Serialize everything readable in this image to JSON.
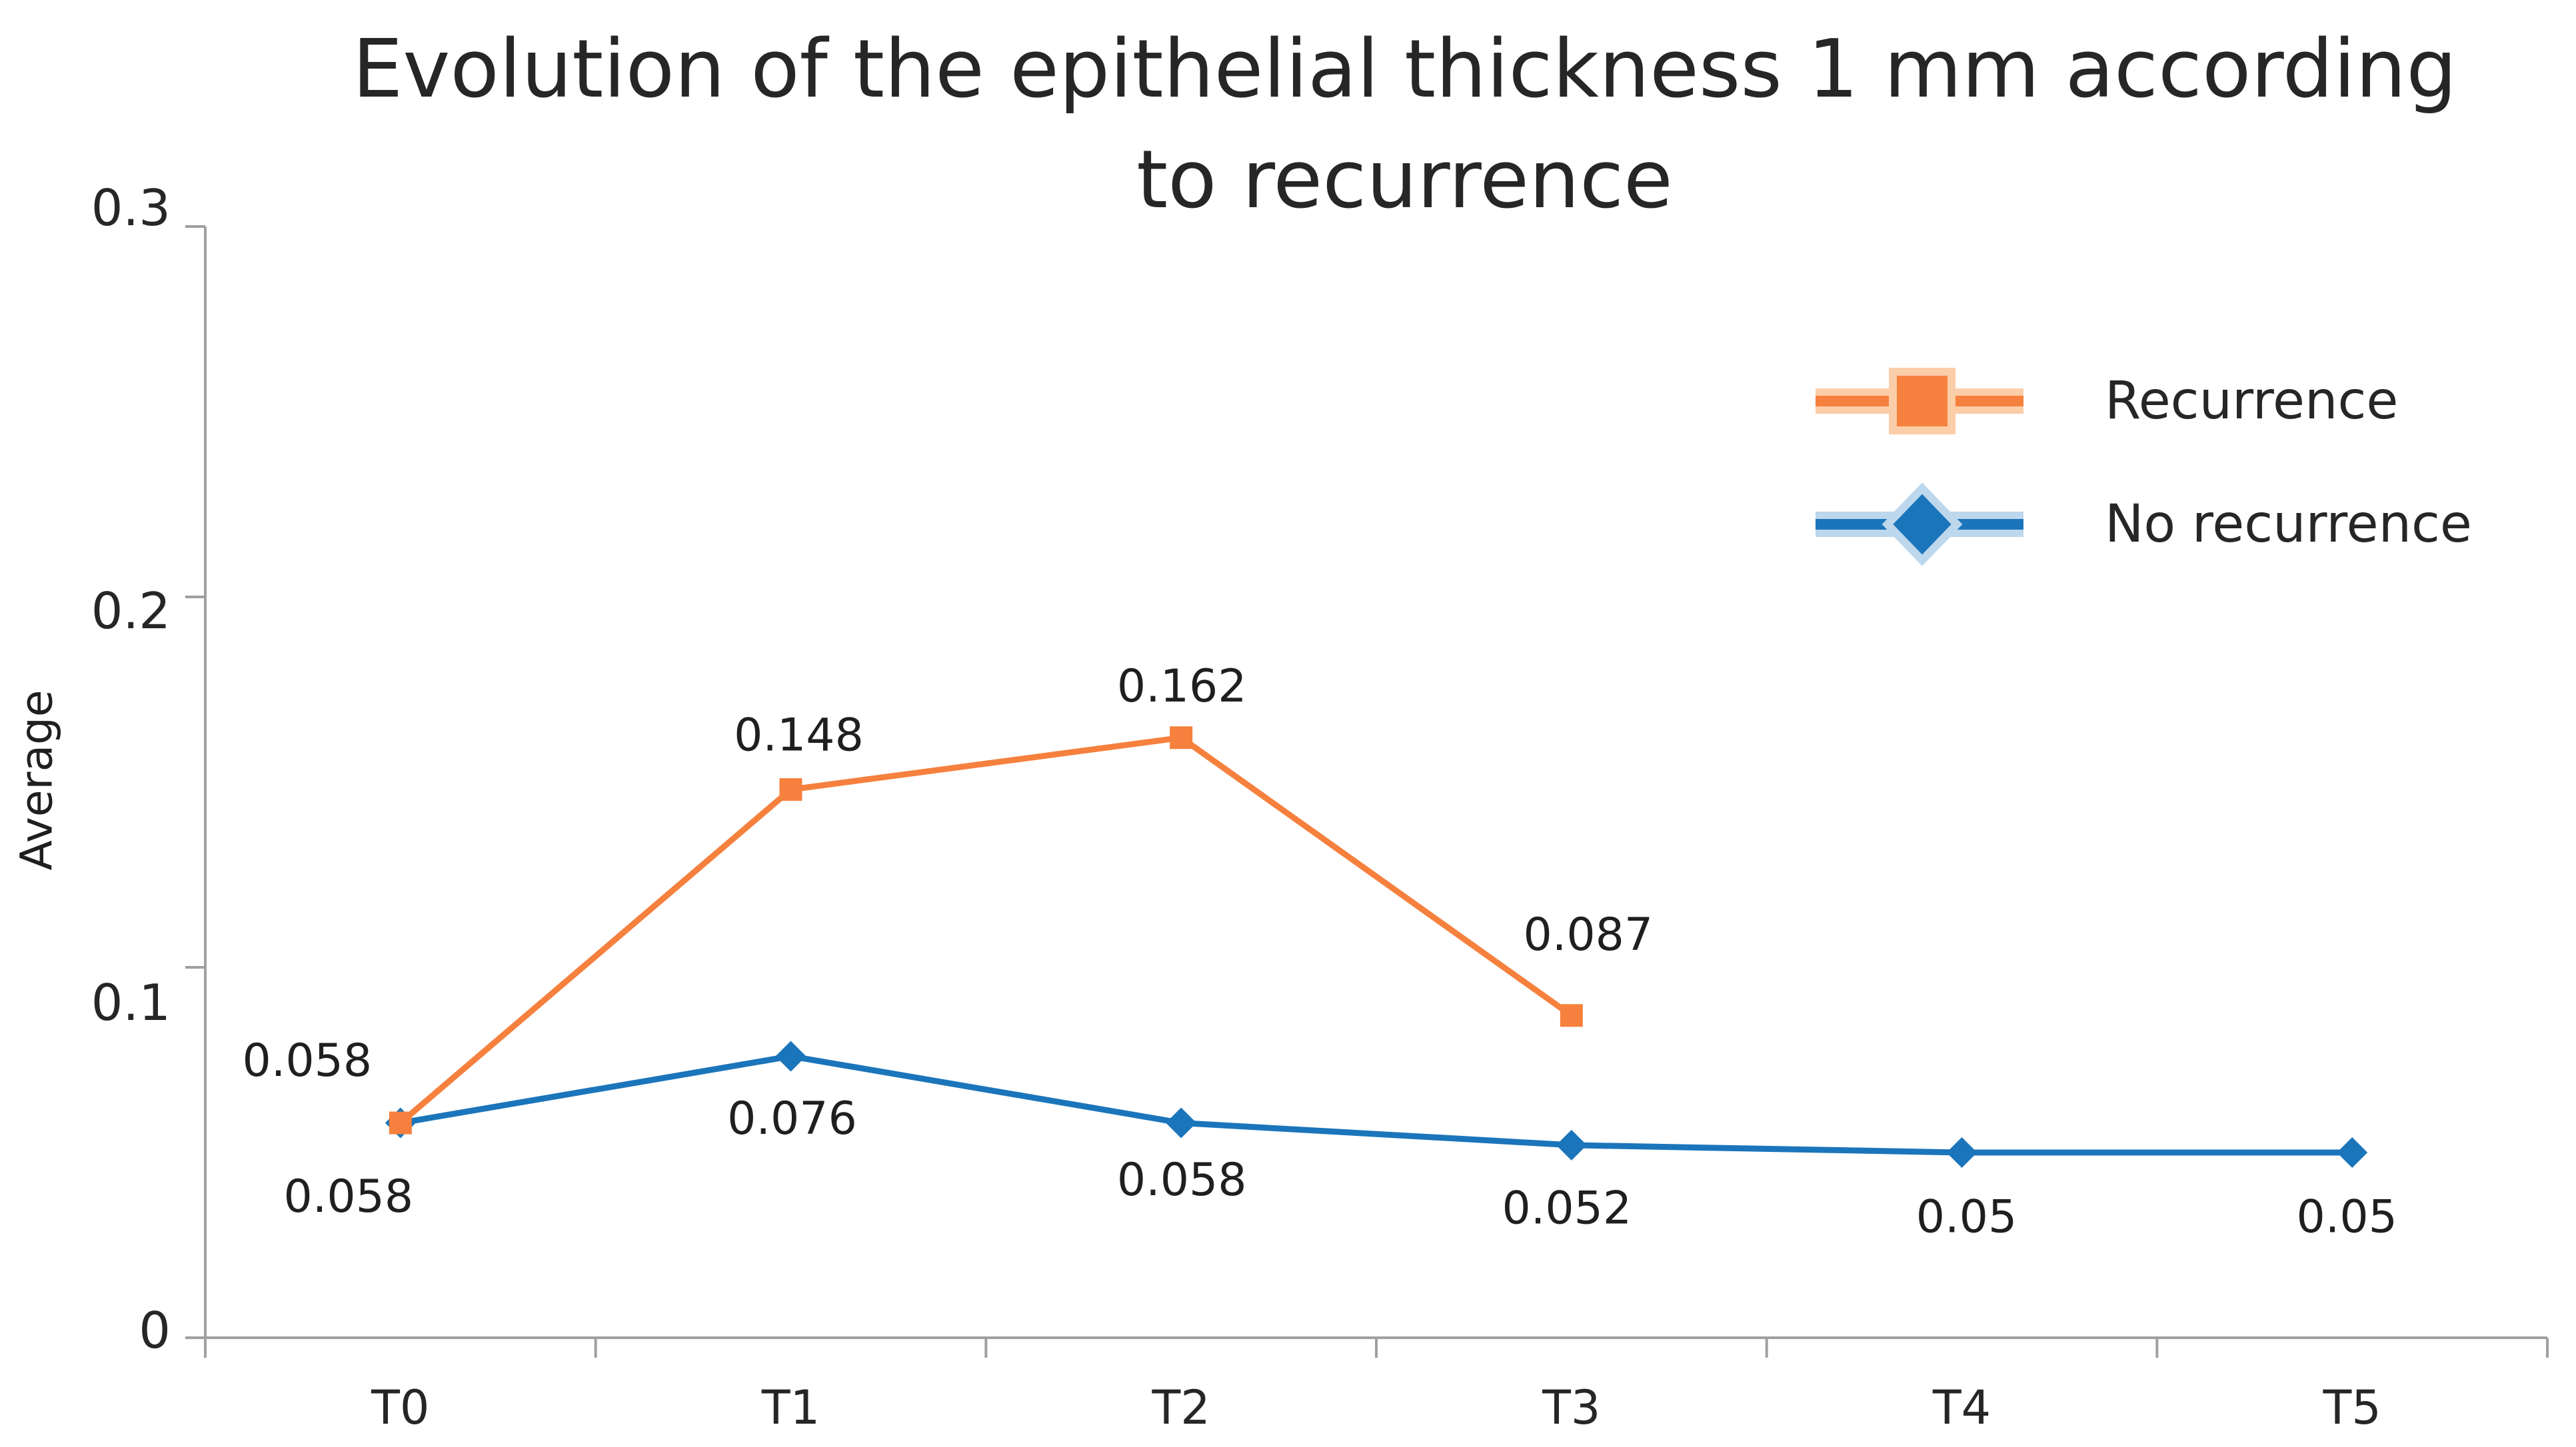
{
  "title_lines": [
    "Evolution of the epithelial thickness 1 mm according",
    "to recurrence"
  ],
  "chart_data": {
    "type": "line",
    "title": "Evolution of the epithelial thickness 1 mm according to recurrence",
    "ylabel": "Average",
    "xlabel": "",
    "categories": [
      "T0",
      "T1",
      "T2",
      "T3",
      "T4",
      "T5"
    ],
    "series": [
      {
        "name": "Recurrence",
        "color": "#F6803D",
        "halo_color": "#FBCDA8",
        "marker": "square",
        "values": [
          0.058,
          0.148,
          0.162,
          0.087,
          null,
          null
        ],
        "labels": [
          "0.058",
          "0.148",
          "0.162",
          "0.087",
          null,
          null
        ],
        "label_offsets": [
          [
            -140,
            -93
          ],
          [
            12,
            -81
          ],
          [
            1,
            -77
          ],
          [
            25,
            -121
          ],
          null,
          null
        ]
      },
      {
        "name": "No recurrence",
        "color": "#1B75BB",
        "halo_color": "#BDD7EC",
        "marker": "diamond",
        "values": [
          0.058,
          0.076,
          0.058,
          0.052,
          0.05,
          0.05
        ],
        "labels": [
          "0.058",
          "0.076",
          "0.058",
          "0.052",
          "0.05",
          "0.05"
        ],
        "label_offsets": [
          [
            -78,
            111
          ],
          [
            2,
            94
          ],
          [
            1,
            86
          ],
          [
            -7,
            95
          ],
          [
            7,
            97
          ],
          [
            -8,
            97
          ]
        ]
      }
    ],
    "yticks": [
      "0",
      "0.1",
      "0.2",
      "0.3"
    ],
    "ytick_values": [
      0,
      0.1,
      0.2,
      0.3
    ],
    "ylim": [
      0,
      0.3
    ],
    "grid": false,
    "legend_position": "right",
    "axis_color": "#A0A0A0",
    "text_color": "#262626",
    "data_label_color": "#1f1f1f"
  }
}
